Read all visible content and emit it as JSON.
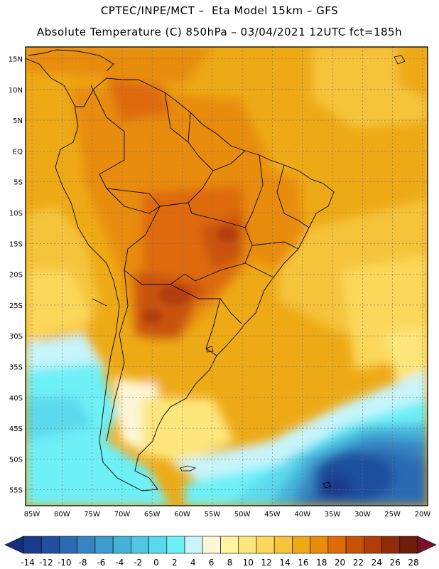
{
  "header": {
    "line1": "CPTEC/INPE/MCT –  Eta Model 15km – GFS",
    "line2": "Absolute Temperature (C) 850hPa – 03/04/2021 12UTC fct=185h"
  },
  "map": {
    "lat_labels": [
      "15N",
      "10N",
      "5N",
      "EQ",
      "5S",
      "10S",
      "15S",
      "20S",
      "25S",
      "30S",
      "35S",
      "40S",
      "45S",
      "50S",
      "55S"
    ],
    "lon_labels": [
      "85W",
      "80W",
      "75W",
      "70W",
      "65W",
      "60W",
      "55W",
      "50W",
      "45W",
      "40W",
      "35W",
      "30W",
      "25W",
      "20W"
    ]
  },
  "colorbar": {
    "ticks": [
      "-14",
      "-12",
      "-10",
      "-8",
      "-6",
      "-4",
      "-2",
      "0",
      "2",
      "4",
      "6",
      "8",
      "10",
      "12",
      "14",
      "16",
      "18",
      "20",
      "22",
      "24",
      "26",
      "28"
    ],
    "colors": [
      "#1a3a8c",
      "#1f4f9e",
      "#2c6bb3",
      "#3585c2",
      "#3d9bce",
      "#44b1d9",
      "#4fc6e2",
      "#5bd9ec",
      "#6ef0f7",
      "#c8f4fb",
      "#fdf6d8",
      "#fff4a0",
      "#fde67c",
      "#fbd85a",
      "#f5c43a",
      "#eeaa16",
      "#e88c0a",
      "#de6a08",
      "#c95207",
      "#b23d08",
      "#8f2c0a",
      "#6e1d0b"
    ],
    "under_color": "#15307a",
    "over_color": "#7a0f2a"
  }
}
